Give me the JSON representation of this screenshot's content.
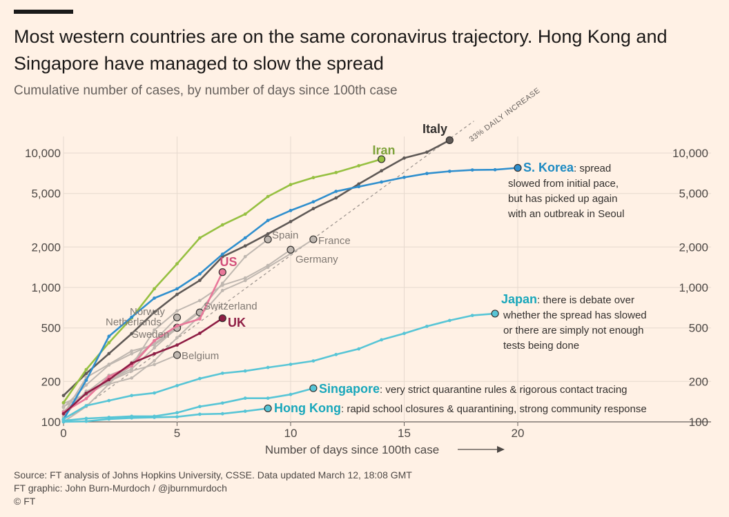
{
  "header": {
    "title": "Most western countries are on the same coronavirus trajectory. Hong Kong and Singapore have managed to slow the spread",
    "subtitle": "Cumulative number of cases, by number of days since 100th case"
  },
  "footer": {
    "source": "Source: FT analysis of Johns Hopkins University, CSSE. Data updated March 12, 18:08 GMT",
    "graphic": "FT graphic: John Burn-Murdoch / @jburnmurdoch",
    "copyright": "© FT"
  },
  "chart_data": {
    "type": "line",
    "y_scale": "log",
    "xlim": [
      0,
      20
    ],
    "ylim": [
      100,
      13000
    ],
    "x_ticks": [
      0,
      5,
      10,
      15,
      20
    ],
    "y_ticks": [
      100,
      200,
      500,
      1000,
      2000,
      5000,
      10000
    ],
    "y_tick_labels": [
      "100",
      "200",
      "500",
      "1,000",
      "2,000",
      "5,000",
      "10,000"
    ],
    "xlabel": "Number of days since 100th case",
    "grid": true,
    "colors": {
      "highlight_grey": "#66605c",
      "other_grey": "#bfb7b0"
    },
    "reference_line": {
      "label": "33% DAILY INCREASE",
      "daily_growth": 0.33,
      "start": [
        0,
        100
      ]
    },
    "series": [
      {
        "name": "Italy",
        "color": "#5f5956",
        "label_color": "#33302e",
        "x": [
          0,
          1,
          2,
          3,
          4,
          5,
          6,
          7,
          8,
          9,
          10,
          11,
          12,
          13,
          14,
          15,
          16,
          17
        ],
        "y": [
          157,
          229,
          322,
          453,
          655,
          888,
          1128,
          1694,
          2036,
          2502,
          3089,
          3858,
          4636,
          5883,
          7375,
          9172,
          10149,
          12462
        ]
      },
      {
        "name": "Iran",
        "color": "#96c041",
        "label_color": "#7ea23a",
        "x": [
          0,
          1,
          2,
          3,
          4,
          5,
          6,
          7,
          8,
          9,
          10,
          11,
          12,
          13,
          14
        ],
        "y": [
          139,
          245,
          388,
          593,
          978,
          1501,
          2336,
          2922,
          3513,
          4747,
          5823,
          6566,
          7161,
          8042,
          9000
        ]
      },
      {
        "name": "S. Korea",
        "annotation": ": spread slowed from initial pace, but has picked up again with an outbreak in Seoul",
        "annotation_lines": [
          "spread",
          "slowed from initial pace,",
          "but has picked up again",
          "with an outbreak in Seoul"
        ],
        "color": "#2f8fce",
        "label_color": "#1d8ac2",
        "x": [
          0,
          1,
          2,
          3,
          4,
          5,
          6,
          7,
          8,
          9,
          10,
          11,
          12,
          13,
          14,
          15,
          16,
          17,
          18,
          19,
          20
        ],
        "y": [
          104,
          204,
          433,
          602,
          833,
          977,
          1261,
          1766,
          2337,
          3150,
          3736,
          4335,
          5186,
          5621,
          6088,
          6593,
          7041,
          7313,
          7478,
          7513,
          7755
        ]
      },
      {
        "name": "US",
        "color": "#e9789a",
        "label_color": "#d24f7b",
        "x": [
          0,
          1,
          2,
          3,
          4,
          5,
          6,
          7
        ],
        "y": [
          118,
          149,
          217,
          262,
          402,
          518,
          583,
          1300
        ]
      },
      {
        "name": "UK",
        "color": "#8e1d44",
        "label_color": "#8e1d44",
        "x": [
          0,
          1,
          2,
          3,
          4,
          5,
          6,
          7
        ],
        "y": [
          115,
          163,
          206,
          273,
          321,
          373,
          456,
          590
        ]
      },
      {
        "name": "Japan",
        "annotation": ": there is debate over whether the spread has slowed or there are simply not enough tests being done",
        "annotation_lines": [
          "there is debate over",
          "whether the spread has slowed",
          "or there are simply not enough",
          "tests being done"
        ],
        "color": "#57c5d6",
        "label_color": "#19a7bb",
        "x": [
          0,
          1,
          2,
          3,
          4,
          5,
          6,
          7,
          8,
          9,
          10,
          11,
          12,
          13,
          14,
          15,
          16,
          17,
          18,
          19
        ],
        "y": [
          105,
          132,
          144,
          157,
          164,
          186,
          210,
          230,
          239,
          254,
          268,
          284,
          317,
          349,
          408,
          455,
          514,
          568,
          619,
          639
        ]
      },
      {
        "name": "Singapore",
        "annotation": ": very strict quarantine rules & rigorous contact tracing",
        "color": "#57c5d6",
        "label_color": "#19a7bb",
        "x": [
          0,
          1,
          2,
          3,
          4,
          5,
          6,
          7,
          8,
          9,
          10,
          11
        ],
        "y": [
          102,
          106,
          108,
          110,
          110,
          117,
          130,
          138,
          150,
          150,
          160,
          178
        ]
      },
      {
        "name": "Hong Kong",
        "annotation": ": rapid school closures & quarantining, strong community response",
        "color": "#57c5d6",
        "label_color": "#19a7bb",
        "x": [
          0,
          1,
          2,
          3,
          4,
          5,
          6,
          7,
          8,
          9
        ],
        "y": [
          100,
          101,
          105,
          107,
          108,
          109,
          114,
          115,
          120,
          126
        ]
      },
      {
        "name": "Spain",
        "color": "#bfb7b0",
        "label_color": "#807973",
        "x": [
          0,
          1,
          2,
          3,
          4,
          5,
          6,
          7,
          8,
          9
        ],
        "y": [
          120,
          165,
          222,
          259,
          400,
          500,
          673,
          1073,
          1695,
          2277
        ]
      },
      {
        "name": "France",
        "color": "#bfb7b0",
        "label_color": "#807973",
        "x": [
          0,
          1,
          2,
          3,
          4,
          5,
          6,
          7,
          8,
          9,
          10,
          11
        ],
        "y": [
          100,
          130,
          191,
          212,
          285,
          423,
          613,
          949,
          1126,
          1412,
          1784,
          2281
        ]
      },
      {
        "name": "Germany",
        "color": "#bfb7b0",
        "label_color": "#807973",
        "x": [
          0,
          1,
          2,
          3,
          4,
          5,
          6,
          7,
          8,
          9,
          10
        ],
        "y": [
          130,
          159,
          196,
          262,
          482,
          670,
          799,
          1040,
          1176,
          1457,
          1908
        ]
      },
      {
        "name": "Switzerland",
        "color": "#bfb7b0",
        "label_color": "#807973",
        "x": [
          0,
          1,
          2,
          3,
          4,
          5,
          6
        ],
        "y": [
          114,
          214,
          268,
          337,
          374,
          491,
          652
        ]
      },
      {
        "name": "Norway",
        "color": "#bfb7b0",
        "label_color": "#807973",
        "x": [
          0,
          1,
          2,
          3,
          4,
          5
        ],
        "y": [
          113,
          169,
          192,
          277,
          400,
          598
        ]
      },
      {
        "name": "Netherlands",
        "color": "#bfb7b0",
        "label_color": "#807973",
        "x": [
          0,
          1,
          2,
          3,
          4,
          5
        ],
        "y": [
          128,
          188,
          265,
          321,
          382,
          503
        ]
      },
      {
        "name": "Sweden",
        "color": "#bfb7b0",
        "label_color": "#807973",
        "x": [
          0,
          1,
          2,
          3,
          4,
          5
        ],
        "y": [
          137,
          161,
          203,
          248,
          355,
          500
        ]
      },
      {
        "name": "Belgium",
        "color": "#bfb7b0",
        "label_color": "#807973",
        "x": [
          0,
          1,
          2,
          3,
          4,
          5
        ],
        "y": [
          109,
          169,
          200,
          239,
          267,
          314
        ]
      }
    ]
  }
}
